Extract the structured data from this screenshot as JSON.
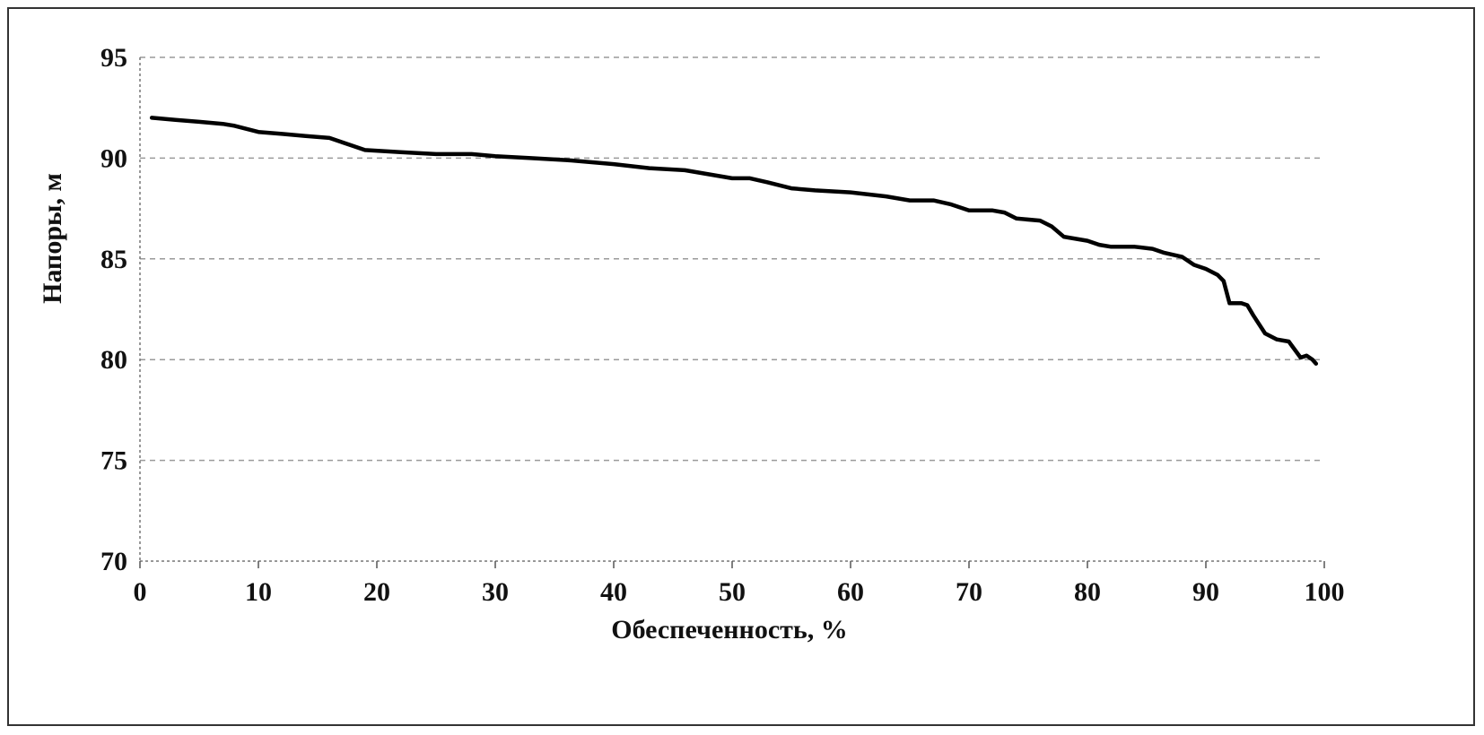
{
  "chart_data": {
    "type": "line",
    "xlabel": "Обеспеченность, %",
    "ylabel": "Напоры, м",
    "xlim": [
      0,
      100
    ],
    "ylim": [
      70,
      95
    ],
    "x_ticks": [
      0,
      10,
      20,
      30,
      40,
      50,
      60,
      70,
      80,
      90,
      100
    ],
    "y_ticks": [
      70,
      75,
      80,
      85,
      90,
      95
    ],
    "grid": "horizontal",
    "legend": "none",
    "line_color": "#000000",
    "series": [
      {
        "x": [
          1,
          3,
          5,
          7,
          8,
          10,
          12,
          14,
          16,
          17,
          18,
          19,
          22,
          25,
          28,
          30,
          33,
          36,
          40,
          43,
          46,
          48,
          50,
          51.5,
          53,
          55,
          57,
          60,
          63,
          65,
          67,
          68.5,
          70,
          72,
          73,
          74,
          76,
          77,
          78,
          80,
          81,
          82,
          84,
          85.5,
          86.5,
          88,
          89,
          90,
          91,
          91.5,
          92,
          93,
          93.5,
          94,
          95,
          96,
          97,
          97.5,
          98,
          98.5,
          99,
          99.3
        ],
        "y": [
          92.0,
          91.9,
          91.8,
          91.7,
          91.6,
          91.3,
          91.2,
          91.1,
          91.0,
          90.8,
          90.6,
          90.4,
          90.3,
          90.2,
          90.2,
          90.1,
          90.0,
          89.9,
          89.7,
          89.5,
          89.4,
          89.2,
          89.0,
          89.0,
          88.8,
          88.5,
          88.4,
          88.3,
          88.1,
          87.9,
          87.9,
          87.7,
          87.4,
          87.4,
          87.3,
          87.0,
          86.9,
          86.6,
          86.1,
          85.9,
          85.7,
          85.6,
          85.6,
          85.5,
          85.3,
          85.1,
          84.7,
          84.5,
          84.2,
          83.9,
          82.8,
          82.8,
          82.7,
          82.2,
          81.3,
          81.0,
          80.9,
          80.5,
          80.1,
          80.2,
          80.0,
          79.8
        ]
      }
    ]
  }
}
